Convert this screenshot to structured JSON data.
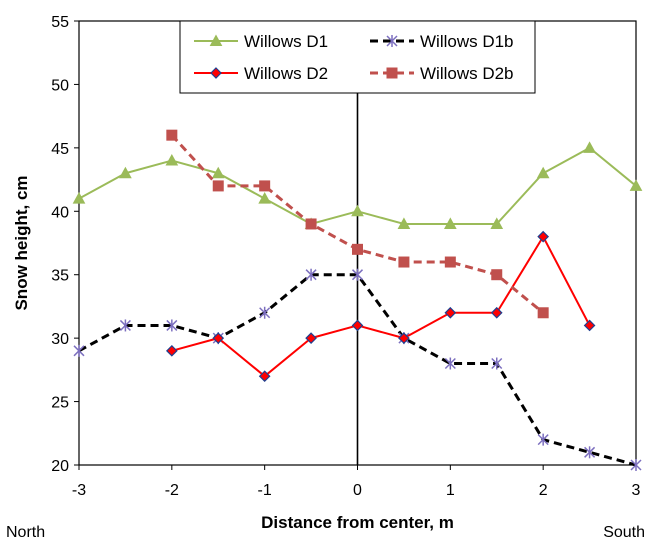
{
  "chart_data": {
    "type": "line",
    "xlabel": "Distance from center, m",
    "ylabel": "Snow height, cm",
    "xlim": [
      -3,
      3
    ],
    "ylim": [
      20,
      55
    ],
    "xticks": [
      "-3",
      "-2",
      "-1",
      "0",
      "1",
      "2",
      "3"
    ],
    "yticks": [
      "20",
      "25",
      "30",
      "35",
      "40",
      "45",
      "50",
      "55"
    ],
    "x_left_note": "North",
    "x_right_note": "South",
    "grid": false,
    "center_line": 0,
    "legend_position": "top-center",
    "series": [
      {
        "name": "Willows D1",
        "color": "#9bbb59",
        "marker": "triangle",
        "dash": "solid",
        "x": [
          -3,
          -2.5,
          -2,
          -1.5,
          -1,
          -0.5,
          0,
          0.5,
          1,
          1.5,
          2,
          2.5,
          3
        ],
        "values": [
          41,
          43,
          44,
          43,
          41,
          39,
          40,
          39,
          39,
          39,
          43,
          45,
          42
        ]
      },
      {
        "name": "Willows D1b",
        "color": "#000000",
        "marker": "star",
        "dash": "dashed",
        "x": [
          -3,
          -2.5,
          -2,
          -1.5,
          -1,
          -0.5,
          0,
          0.5,
          1,
          1.5,
          2,
          2.5,
          3
        ],
        "values": [
          29,
          31,
          31,
          30,
          32,
          35,
          35,
          30,
          28,
          28,
          22,
          21,
          20
        ]
      },
      {
        "name": "Willows D2",
        "color": "#ff0000",
        "marker": "diamond",
        "dash": "solid",
        "x": [
          -2,
          -1.5,
          -1,
          -0.5,
          0,
          0.5,
          1,
          1.5,
          2,
          2.5
        ],
        "values": [
          29,
          30,
          27,
          30,
          31,
          30,
          32,
          32,
          38,
          31
        ]
      },
      {
        "name": "Willows D2b",
        "color": "#c0504d",
        "marker": "square",
        "dash": "dashed",
        "x": [
          -2,
          -1.5,
          -1,
          -0.5,
          0,
          0.5,
          1,
          1.5,
          2
        ],
        "values": [
          46,
          42,
          42,
          39,
          37,
          36,
          36,
          35,
          32
        ]
      }
    ]
  }
}
